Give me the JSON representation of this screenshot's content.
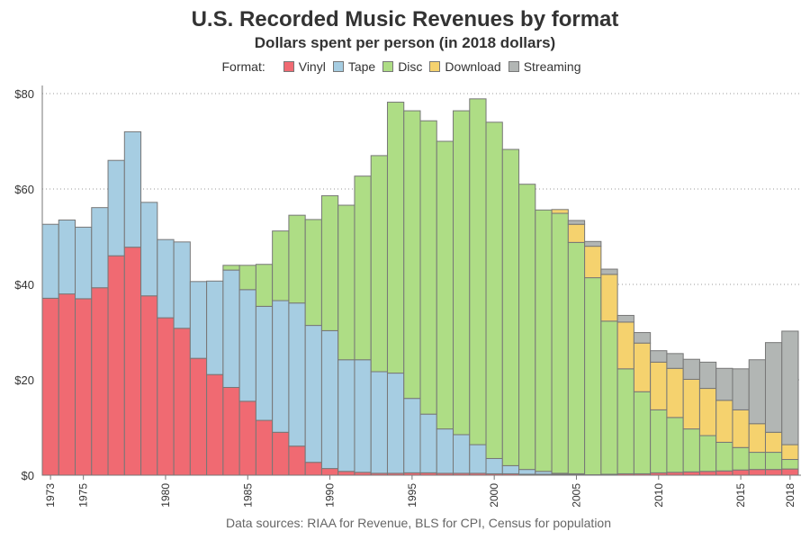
{
  "title": "U.S. Recorded Music Revenues by format",
  "subtitle": "Dollars spent per person (in 2018 dollars)",
  "legend_title": "Format:",
  "source_note": "Data sources: RIAA for Revenue, BLS for CPI, Census for population",
  "chart_data": {
    "type": "bar",
    "stacked": true,
    "title": "U.S. Recorded Music Revenues by format",
    "subtitle": "Dollars spent per person (in 2018 dollars)",
    "xlabel": "",
    "ylabel": "",
    "ylim": [
      0,
      80
    ],
    "yticks": [
      0,
      20,
      40,
      60,
      80
    ],
    "ytick_labels": [
      "$0",
      "$20",
      "$40",
      "$60",
      "$80"
    ],
    "xtick_labels": [
      "1973",
      "1975",
      "1980",
      "1985",
      "1990",
      "1995",
      "2000",
      "2005",
      "2010",
      "2015",
      "2018"
    ],
    "grid": "horizontal dotted",
    "legend_position": "top",
    "categories": [
      1973,
      1974,
      1975,
      1976,
      1977,
      1978,
      1979,
      1980,
      1981,
      1982,
      1983,
      1984,
      1985,
      1986,
      1987,
      1988,
      1989,
      1990,
      1991,
      1992,
      1993,
      1994,
      1995,
      1996,
      1997,
      1998,
      1999,
      2000,
      2001,
      2002,
      2003,
      2004,
      2005,
      2006,
      2007,
      2008,
      2009,
      2010,
      2011,
      2012,
      2013,
      2014,
      2015,
      2016,
      2017,
      2018
    ],
    "series": [
      {
        "name": "Vinyl",
        "color": "#f06a72",
        "values": [
          37.1,
          38.0,
          37.0,
          39.3,
          46.0,
          47.8,
          37.6,
          33.0,
          30.8,
          24.5,
          21.1,
          18.4,
          15.5,
          11.5,
          9.0,
          6.1,
          2.7,
          1.4,
          0.8,
          0.6,
          0.4,
          0.4,
          0.5,
          0.5,
          0.4,
          0.4,
          0.4,
          0.3,
          0.3,
          0.2,
          0.2,
          0.2,
          0.2,
          0.1,
          0.2,
          0.3,
          0.3,
          0.5,
          0.6,
          0.7,
          0.8,
          0.9,
          1.1,
          1.2,
          1.2,
          1.3
        ]
      },
      {
        "name": "Tape",
        "color": "#a6cde2",
        "values": [
          15.5,
          15.5,
          15.0,
          16.8,
          20.0,
          24.2,
          19.6,
          16.4,
          18.1,
          16.1,
          19.6,
          24.6,
          23.4,
          23.9,
          27.6,
          30.0,
          28.7,
          28.9,
          23.4,
          23.6,
          21.3,
          21.0,
          15.6,
          12.3,
          9.3,
          8.1,
          6.0,
          3.2,
          1.7,
          1.0,
          0.6,
          0.2,
          0.1,
          0.0,
          0.0,
          0.0,
          0.0,
          0.0,
          0.0,
          0.0,
          0.0,
          0.0,
          0.0,
          0.0,
          0.0,
          0.0
        ]
      },
      {
        "name": "Disc",
        "color": "#aedd85",
        "values": [
          0,
          0,
          0,
          0,
          0,
          0,
          0,
          0,
          0,
          0,
          0,
          1.0,
          5.1,
          8.8,
          14.6,
          18.4,
          22.2,
          28.3,
          32.4,
          38.5,
          45.3,
          56.8,
          60.3,
          61.5,
          60.3,
          67.9,
          72.5,
          70.5,
          66.3,
          59.8,
          54.8,
          54.5,
          48.5,
          41.3,
          32.1,
          22.0,
          17.2,
          13.2,
          11.5,
          9.0,
          7.5,
          6.0,
          4.7,
          3.6,
          3.6,
          2.0
        ]
      },
      {
        "name": "Download",
        "color": "#f5d26e",
        "values": [
          0,
          0,
          0,
          0,
          0,
          0,
          0,
          0,
          0,
          0,
          0,
          0,
          0,
          0,
          0,
          0,
          0,
          0,
          0,
          0,
          0,
          0,
          0,
          0,
          0,
          0,
          0,
          0,
          0,
          0,
          0,
          0.8,
          3.8,
          6.6,
          9.8,
          9.8,
          10.2,
          10.0,
          10.3,
          10.4,
          9.9,
          8.8,
          7.9,
          6.0,
          4.2,
          3.1
        ]
      },
      {
        "name": "Streaming",
        "color": "#b2b6b4",
        "values": [
          0,
          0,
          0,
          0,
          0,
          0,
          0,
          0,
          0,
          0,
          0,
          0,
          0,
          0,
          0,
          0,
          0,
          0,
          0,
          0,
          0,
          0,
          0,
          0,
          0,
          0,
          0,
          0,
          0,
          0,
          0,
          0,
          0.8,
          1.0,
          1.1,
          1.4,
          2.2,
          2.4,
          3.1,
          4.2,
          5.5,
          6.7,
          8.6,
          13.4,
          18.8,
          23.8
        ]
      }
    ]
  }
}
